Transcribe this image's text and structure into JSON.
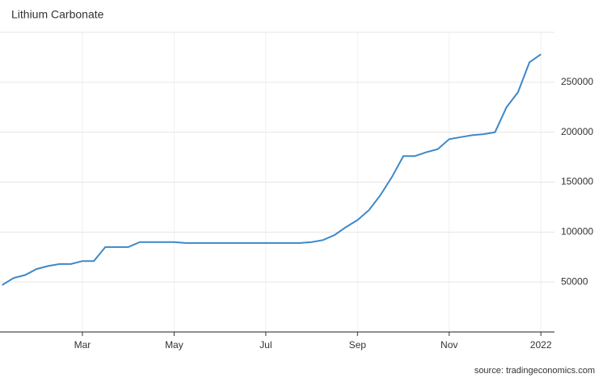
{
  "chart_data": {
    "type": "line",
    "title": "Lithium Carbonate",
    "source": "source: tradingeconomics.com",
    "categories": [
      null,
      null,
      null,
      null,
      null,
      null,
      null,
      "Mar",
      null,
      null,
      null,
      null,
      null,
      null,
      null,
      "May",
      null,
      null,
      null,
      null,
      null,
      null,
      null,
      "Jul",
      null,
      null,
      null,
      null,
      null,
      null,
      null,
      "Sep",
      null,
      null,
      null,
      null,
      null,
      null,
      null,
      "Nov",
      null,
      null,
      null,
      null,
      null,
      null,
      null,
      "2022"
    ],
    "series": [
      {
        "name": "Lithium Carbonate",
        "color": "#3d88c8",
        "values": [
          47000,
          54000,
          57000,
          63000,
          66000,
          68000,
          68000,
          71000,
          71000,
          85000,
          85000,
          85000,
          90000,
          90000,
          90000,
          90000,
          89000,
          89000,
          89000,
          89000,
          89000,
          89000,
          89000,
          89000,
          89000,
          89000,
          89000,
          90000,
          92000,
          97000,
          105000,
          112000,
          122000,
          137000,
          155000,
          176000,
          176000,
          180000,
          183000,
          193000,
          195000,
          197000,
          198000,
          200000,
          225000,
          240000,
          270000,
          278000
        ]
      }
    ],
    "ylim": [
      0,
      300000
    ],
    "yticks": [
      50000,
      100000,
      150000,
      200000,
      250000
    ],
    "grid": true
  }
}
